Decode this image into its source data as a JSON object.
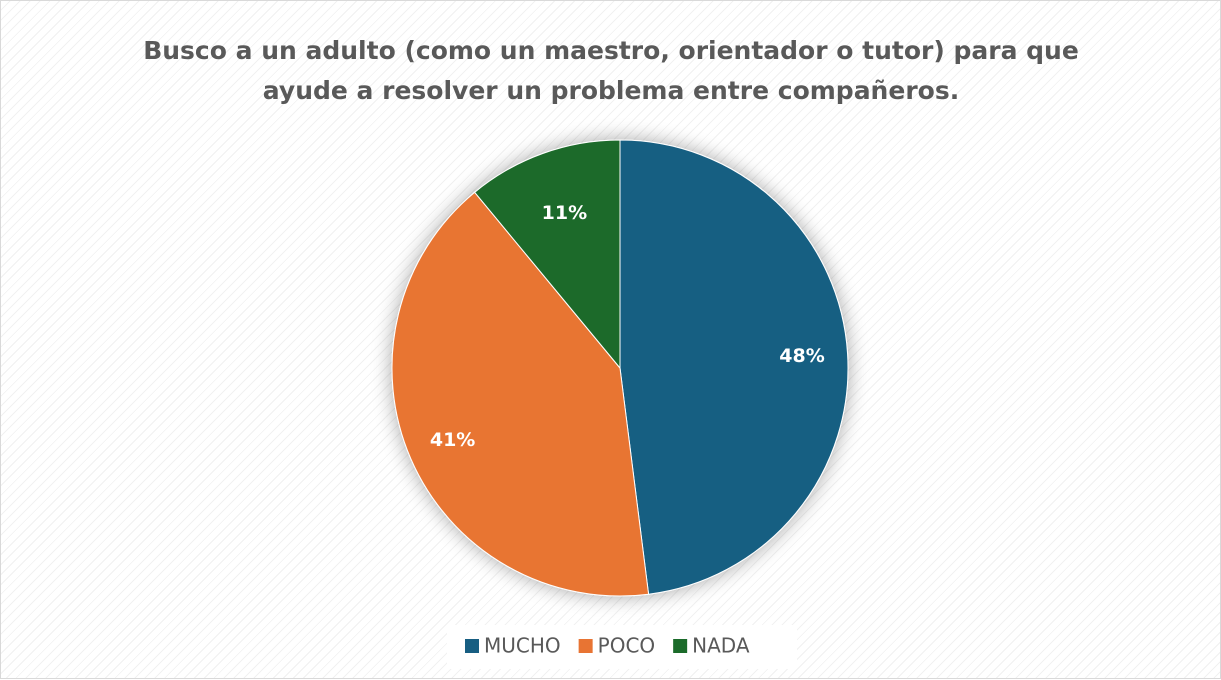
{
  "chart_data": {
    "type": "pie",
    "title": "Busco a un adulto (como un maestro, orientador o tutor) para que\nayude a resolver un problema entre compañeros.",
    "categories": [
      "MUCHO",
      "POCO",
      "NADA"
    ],
    "values": [
      48,
      41,
      11
    ],
    "value_labels": [
      "48%",
      "41%",
      "11%"
    ],
    "colors": [
      "#175e82",
      "#e87433",
      "#1b6b2a"
    ],
    "legend": "bottom"
  }
}
